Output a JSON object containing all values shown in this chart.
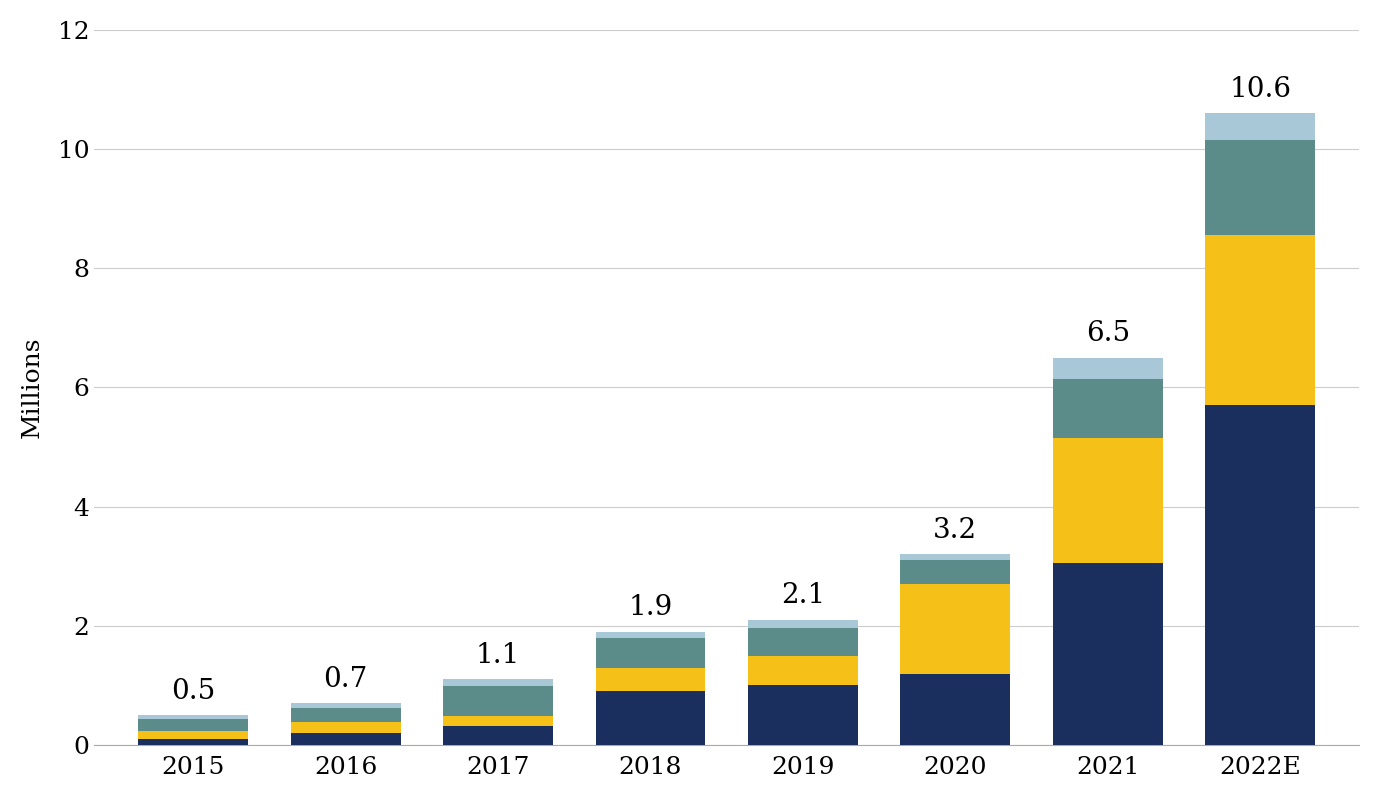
{
  "years": [
    "2015",
    "2016",
    "2017",
    "2018",
    "2019",
    "2020",
    "2021",
    "2022E"
  ],
  "totals": [
    0.5,
    0.7,
    1.1,
    1.9,
    2.1,
    3.2,
    6.5,
    10.6
  ],
  "segments": {
    "navy": [
      0.1,
      0.2,
      0.32,
      0.9,
      1.0,
      1.2,
      3.05,
      5.7
    ],
    "gold": [
      0.13,
      0.18,
      0.17,
      0.4,
      0.5,
      1.5,
      2.1,
      2.85
    ],
    "teal": [
      0.2,
      0.25,
      0.5,
      0.5,
      0.47,
      0.4,
      1.0,
      1.6
    ],
    "ltblue": [
      0.07,
      0.07,
      0.11,
      0.1,
      0.13,
      0.1,
      0.35,
      0.45
    ]
  },
  "colors": {
    "navy": "#1a2f5e",
    "gold": "#f5c118",
    "teal": "#5b8c8a",
    "ltblue": "#a8c8d8"
  },
  "ylabel": "Millions",
  "ylim": [
    0,
    12
  ],
  "yticks": [
    0,
    2,
    4,
    6,
    8,
    10,
    12
  ],
  "background_color": "#ffffff",
  "label_fontsize": 18,
  "tick_fontsize": 18,
  "annotation_fontsize": 20,
  "bar_width": 0.72
}
